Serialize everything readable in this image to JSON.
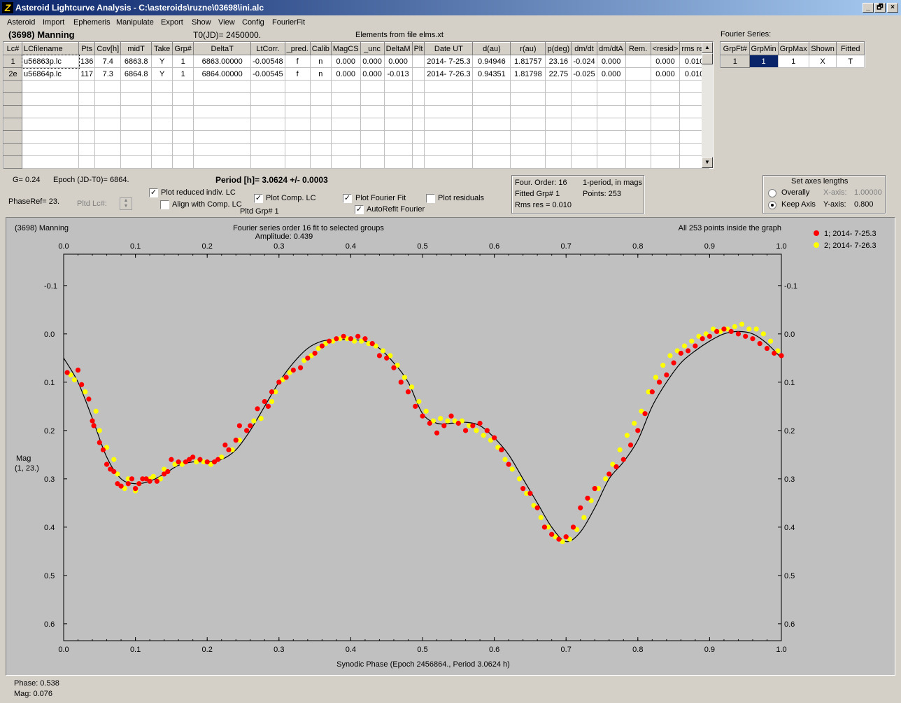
{
  "window": {
    "title": "Asteroid Lightcurve Analysis - C:\\asteroids\\ruzne\\03698\\ini.alc",
    "app_icon": "Z",
    "min": "_",
    "max": "🗗",
    "close": "×"
  },
  "menu": [
    "Asteroid",
    "Import",
    "Ephemeris",
    "Manipulate",
    "Export",
    "Show",
    "View",
    "Config",
    "FourierFit"
  ],
  "header": {
    "asteroid": "(3698) Manning",
    "t0": "T0(JD)= 2450000.",
    "elements": "Elements from file elms.xt"
  },
  "lc_table": {
    "columns": [
      "Lc#",
      "LCfilename",
      "Pts",
      "Cov[h]",
      "midT",
      "Take",
      "Grp#",
      "DeltaT",
      "LtCorr.",
      "_pred.",
      "Calib",
      "MagCS",
      "_unc",
      "DeltaM",
      "Plt",
      "Date UT",
      "d(au)",
      "r(au)",
      "p(deg)",
      "dm/dt",
      "dm/dtA",
      "Rem.",
      "<resid>",
      "rms res"
    ],
    "rows": [
      [
        "1",
        "u56863p.lc",
        "136",
        "7.4",
        "6863.8",
        "Y",
        "1",
        "6863.00000",
        "-0.00548",
        "f",
        "n",
        "0.000",
        "0.000",
        "0.000",
        "",
        "2014- 7-25.3",
        "0.94946",
        "1.81757",
        "23.16",
        "-0.024",
        "0.000",
        "",
        "0.000",
        "0.010"
      ],
      [
        "2e",
        "u56864p.lc",
        "117",
        "7.3",
        "6864.8",
        "Y",
        "1",
        "6864.00000",
        "-0.00545",
        "f",
        "n",
        "0.000",
        "0.000",
        "-0.013",
        "",
        "2014- 7-26.3",
        "0.94351",
        "1.81798",
        "22.75",
        "-0.025",
        "0.000",
        "",
        "0.000",
        "0.010"
      ]
    ]
  },
  "fourier_series": {
    "label": "Fourier Series:",
    "columns": [
      "GrpFt#",
      "GrpMin",
      "GrpMax",
      "Shown",
      "Fitted"
    ],
    "row": [
      "1",
      "1",
      "1",
      "X",
      "T"
    ]
  },
  "info": {
    "g": "G= 0.24",
    "epoch": "Epoch (JD-T0)= 6864.",
    "period": "Period [h]= 3.0624 +/- 0.0003",
    "phaseref": "PhaseRef= 23.",
    "pltd_lc": "Pltd Lc#:",
    "pltd_grp": "Pltd Grp#  1"
  },
  "checkboxes": {
    "plot_reduced": {
      "label": "Plot reduced indiv. LC",
      "checked": true
    },
    "align_comp": {
      "label": "Align with Comp. LC",
      "checked": false
    },
    "plot_comp": {
      "label": "Plot Comp. LC",
      "checked": true
    },
    "plot_fourier": {
      "label": "Plot Fourier Fit",
      "checked": true
    },
    "autorefit": {
      "label": "AutoRefit Fourier",
      "checked": true
    },
    "plot_residuals": {
      "label": "Plot residuals",
      "checked": false
    },
    "check_mark": "✓"
  },
  "fit_box": {
    "order": "Four. Order: 16",
    "period_mode": "1-period, in mags",
    "fitted_grp": "Fitted Grp# 1",
    "points": "Points: 253",
    "rms": "Rms res    = 0.010"
  },
  "axes_box": {
    "title": "Set axes lengths",
    "overally": "Overally",
    "keep_axis": "Keep Axis",
    "x_axis_label": "X-axis:",
    "x_axis_value": "1.00000",
    "y_axis_label": "Y-axis:",
    "y_axis_value": "0.800"
  },
  "chart_data": {
    "type": "scatter",
    "title": "Fourier series order 16 fit to selected groups",
    "subtitle": "Amplitude: 0.439",
    "corner_left": "(3698) Manning",
    "corner_right": "All 253 points inside the graph",
    "xlabel": "Synodic Phase (Epoch 2456864., Period 3.0624 h)",
    "ylabel": "Mag",
    "ylabel2": "(1, 23.)",
    "xlim": [
      0.0,
      1.0
    ],
    "ylim": [
      -0.165,
      0.635
    ],
    "y_inverted": true,
    "x_ticks": [
      "0.0",
      "0.1",
      "0.2",
      "0.3",
      "0.4",
      "0.5",
      "0.6",
      "0.7",
      "0.8",
      "0.9",
      "1.0"
    ],
    "y_ticks": [
      -0.1,
      0.0,
      0.1,
      0.2,
      0.3,
      0.4,
      0.5,
      0.6
    ],
    "y_tick_labels": [
      "-0.1",
      "0.0",
      "0.1",
      "0.2",
      "0.3",
      "0.4",
      "0.5",
      "0.6"
    ],
    "curve": {
      "x": [
        0.0,
        0.02,
        0.04,
        0.06,
        0.08,
        0.1,
        0.12,
        0.14,
        0.16,
        0.18,
        0.2,
        0.22,
        0.24,
        0.26,
        0.28,
        0.3,
        0.32,
        0.34,
        0.36,
        0.38,
        0.4,
        0.42,
        0.44,
        0.46,
        0.48,
        0.5,
        0.52,
        0.54,
        0.56,
        0.58,
        0.6,
        0.62,
        0.64,
        0.66,
        0.68,
        0.7,
        0.72,
        0.74,
        0.76,
        0.78,
        0.8,
        0.82,
        0.84,
        0.86,
        0.88,
        0.9,
        0.92,
        0.94,
        0.96,
        0.98,
        1.0
      ],
      "y": [
        0.05,
        0.1,
        0.175,
        0.255,
        0.3,
        0.31,
        0.305,
        0.29,
        0.272,
        0.265,
        0.265,
        0.26,
        0.24,
        0.2,
        0.15,
        0.1,
        0.06,
        0.03,
        0.015,
        0.012,
        0.012,
        0.015,
        0.03,
        0.06,
        0.1,
        0.165,
        0.185,
        0.185,
        0.183,
        0.19,
        0.215,
        0.25,
        0.3,
        0.35,
        0.4,
        0.43,
        0.41,
        0.36,
        0.3,
        0.265,
        0.22,
        0.15,
        0.1,
        0.06,
        0.035,
        0.015,
        0.0,
        -0.005,
        0.0,
        0.02,
        0.05
      ]
    },
    "series": [
      {
        "name": "1; 2014- 7-25.3",
        "color": "#ff0000",
        "x": [
          0.005,
          0.02,
          0.025,
          0.035,
          0.04,
          0.042,
          0.05,
          0.055,
          0.06,
          0.065,
          0.07,
          0.075,
          0.08,
          0.09,
          0.095,
          0.1,
          0.105,
          0.11,
          0.115,
          0.12,
          0.13,
          0.14,
          0.145,
          0.15,
          0.16,
          0.17,
          0.175,
          0.18,
          0.19,
          0.2,
          0.21,
          0.215,
          0.225,
          0.23,
          0.24,
          0.245,
          0.255,
          0.26,
          0.27,
          0.28,
          0.285,
          0.29,
          0.3,
          0.31,
          0.32,
          0.33,
          0.34,
          0.35,
          0.36,
          0.37,
          0.38,
          0.39,
          0.4,
          0.41,
          0.42,
          0.43,
          0.44,
          0.45,
          0.46,
          0.47,
          0.48,
          0.49,
          0.5,
          0.51,
          0.52,
          0.53,
          0.54,
          0.55,
          0.56,
          0.57,
          0.58,
          0.59,
          0.6,
          0.61,
          0.62,
          0.64,
          0.65,
          0.66,
          0.67,
          0.68,
          0.69,
          0.7,
          0.71,
          0.72,
          0.73,
          0.74,
          0.76,
          0.77,
          0.78,
          0.79,
          0.8,
          0.81,
          0.82,
          0.83,
          0.84,
          0.85,
          0.86,
          0.87,
          0.88,
          0.89,
          0.9,
          0.91,
          0.92,
          0.93,
          0.94,
          0.95,
          0.96,
          0.97,
          0.98,
          0.99,
          1.0
        ],
        "y": [
          0.08,
          0.075,
          0.105,
          0.135,
          0.18,
          0.19,
          0.225,
          0.24,
          0.27,
          0.28,
          0.285,
          0.31,
          0.315,
          0.31,
          0.3,
          0.32,
          0.31,
          0.3,
          0.3,
          0.305,
          0.305,
          0.29,
          0.285,
          0.26,
          0.265,
          0.265,
          0.26,
          0.255,
          0.26,
          0.265,
          0.265,
          0.26,
          0.23,
          0.24,
          0.22,
          0.19,
          0.2,
          0.19,
          0.155,
          0.14,
          0.15,
          0.12,
          0.1,
          0.09,
          0.075,
          0.07,
          0.05,
          0.04,
          0.025,
          0.015,
          0.01,
          0.005,
          0.01,
          0.005,
          0.01,
          0.02,
          0.045,
          0.05,
          0.07,
          0.1,
          0.12,
          0.15,
          0.17,
          0.185,
          0.205,
          0.19,
          0.17,
          0.185,
          0.2,
          0.19,
          0.185,
          0.2,
          0.215,
          0.24,
          0.27,
          0.32,
          0.33,
          0.36,
          0.4,
          0.415,
          0.425,
          0.42,
          0.4,
          0.36,
          0.34,
          0.32,
          0.29,
          0.275,
          0.26,
          0.23,
          0.2,
          0.165,
          0.12,
          0.1,
          0.085,
          0.06,
          0.04,
          0.035,
          0.025,
          0.01,
          0.005,
          -0.005,
          -0.01,
          -0.005,
          0.0,
          0.005,
          0.01,
          0.02,
          0.03,
          0.04,
          0.045
        ]
      },
      {
        "name": "2; 2014- 7-26.3",
        "color": "#ffff00",
        "x": [
          0.01,
          0.015,
          0.03,
          0.045,
          0.05,
          0.06,
          0.07,
          0.075,
          0.085,
          0.09,
          0.1,
          0.105,
          0.12,
          0.125,
          0.135,
          0.14,
          0.155,
          0.165,
          0.185,
          0.195,
          0.205,
          0.22,
          0.235,
          0.245,
          0.265,
          0.275,
          0.29,
          0.295,
          0.305,
          0.315,
          0.335,
          0.345,
          0.355,
          0.365,
          0.375,
          0.385,
          0.395,
          0.405,
          0.415,
          0.425,
          0.435,
          0.445,
          0.455,
          0.465,
          0.475,
          0.485,
          0.495,
          0.505,
          0.515,
          0.525,
          0.535,
          0.545,
          0.555,
          0.565,
          0.575,
          0.585,
          0.595,
          0.605,
          0.615,
          0.625,
          0.635,
          0.645,
          0.655,
          0.665,
          0.675,
          0.685,
          0.695,
          0.705,
          0.715,
          0.725,
          0.735,
          0.745,
          0.755,
          0.765,
          0.775,
          0.785,
          0.795,
          0.805,
          0.815,
          0.825,
          0.835,
          0.845,
          0.855,
          0.865,
          0.875,
          0.885,
          0.895,
          0.905,
          0.915,
          0.925,
          0.935,
          0.945,
          0.955,
          0.965,
          0.975,
          0.985,
          0.995
        ],
        "y": [
          0.085,
          0.095,
          0.12,
          0.16,
          0.2,
          0.235,
          0.26,
          0.29,
          0.32,
          0.3,
          0.325,
          0.31,
          0.3,
          0.295,
          0.3,
          0.28,
          0.27,
          0.27,
          0.265,
          0.265,
          0.27,
          0.255,
          0.24,
          0.22,
          0.18,
          0.175,
          0.14,
          0.12,
          0.095,
          0.08,
          0.055,
          0.045,
          0.03,
          0.02,
          0.015,
          0.01,
          0.01,
          0.015,
          0.015,
          0.02,
          0.025,
          0.035,
          0.045,
          0.065,
          0.09,
          0.11,
          0.14,
          0.16,
          0.18,
          0.175,
          0.18,
          0.18,
          0.18,
          0.19,
          0.2,
          0.21,
          0.22,
          0.235,
          0.26,
          0.28,
          0.3,
          0.33,
          0.355,
          0.38,
          0.4,
          0.42,
          0.43,
          0.425,
          0.405,
          0.38,
          0.345,
          0.32,
          0.3,
          0.27,
          0.24,
          0.21,
          0.185,
          0.16,
          0.12,
          0.09,
          0.065,
          0.045,
          0.035,
          0.025,
          0.015,
          0.005,
          0.0,
          -0.01,
          -0.005,
          -0.01,
          -0.015,
          -0.02,
          -0.01,
          -0.01,
          0.0,
          0.015,
          0.035
        ]
      }
    ],
    "legend_position": "top-right"
  },
  "status": {
    "phase": "Phase:  0.538",
    "mag": "Mag:    0.076"
  }
}
